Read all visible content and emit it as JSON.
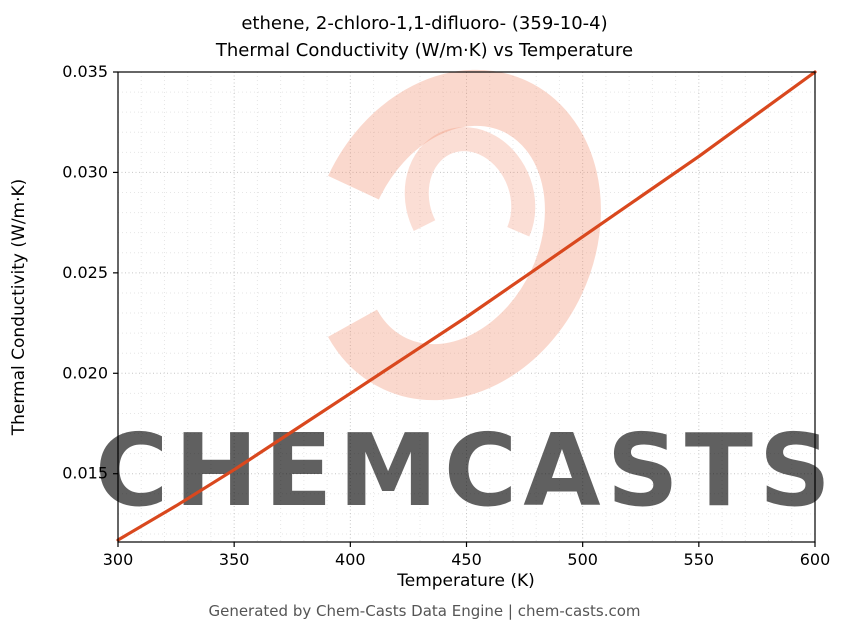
{
  "header": {
    "title_line1": "ethene, 2-chloro-1,1-difluoro- (359-10-4)",
    "title_line2": "Thermal Conductivity (W/m·K) vs Temperature"
  },
  "footer": {
    "text": "Generated by Chem-Casts Data Engine | chem-casts.com"
  },
  "watermark": {
    "text": "CHEMCASTS",
    "logo_icon": "c-swirl-logo",
    "logo_color": "#ef8a68",
    "text_color": "#f5ab95"
  },
  "chart_data": {
    "type": "line",
    "title": "ethene, 2-chloro-1,1-difluoro- (359-10-4) Thermal Conductivity (W/m·K) vs Temperature",
    "xlabel": "Temperature (K)",
    "ylabel": "Thermal Conductivity (W/m·K)",
    "xlim": [
      300,
      600
    ],
    "ylim": [
      0.0116,
      0.035
    ],
    "x_ticks": [
      300,
      350,
      400,
      450,
      500,
      550,
      600
    ],
    "x_tick_labels": [
      "300",
      "350",
      "400",
      "450",
      "500",
      "550",
      "600"
    ],
    "y_ticks": [
      0.015,
      0.02,
      0.025,
      0.03,
      0.035
    ],
    "y_tick_labels": [
      "0.015",
      "0.020",
      "0.025",
      "0.030",
      "0.035"
    ],
    "x_minor_step": 10,
    "y_minor_step": 0.001,
    "grid": {
      "major_color": "#c6c6c6",
      "minor_color": "#e6e6e6"
    },
    "line_color": "#d9481e",
    "series": [
      {
        "name": "thermal_conductivity",
        "x": [
          300,
          325,
          350,
          375,
          400,
          425,
          450,
          475,
          500,
          525,
          550,
          575,
          600
        ],
        "y": [
          0.0117,
          0.0134,
          0.0152,
          0.0171,
          0.019,
          0.0209,
          0.0228,
          0.0248,
          0.0268,
          0.0288,
          0.0308,
          0.0329,
          0.035
        ]
      }
    ]
  }
}
